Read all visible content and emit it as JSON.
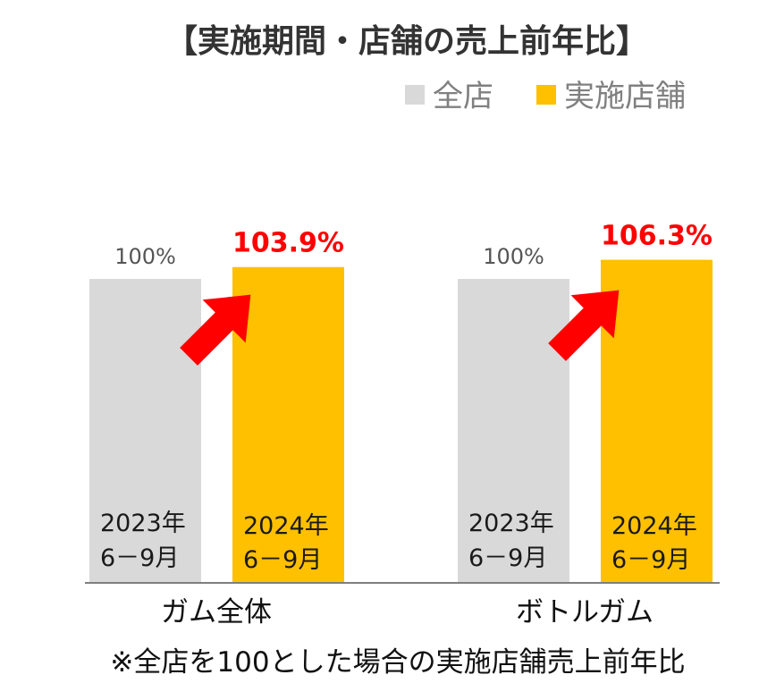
{
  "chart_data": {
    "type": "bar",
    "title": "【実施期間・店舗の売上前年比】",
    "categories": [
      "ガム全体",
      "ボトルガム"
    ],
    "series": [
      {
        "name": "全店",
        "color": "#d9d9d9",
        "values": [
          100,
          100
        ],
        "value_labels": [
          "100%",
          "100%"
        ],
        "period_labels": [
          [
            "2023年",
            "6－9月"
          ],
          [
            "2023年",
            "6－9月"
          ]
        ]
      },
      {
        "name": "実施店舗",
        "color": "#ffc000",
        "values": [
          103.9,
          106.3
        ],
        "value_labels": [
          "103.9%",
          "106.3%"
        ],
        "period_labels": [
          [
            "2024年",
            "6－9月"
          ],
          [
            "2024年",
            "6－9月"
          ]
        ]
      }
    ],
    "ylim": [
      0,
      115
    ],
    "legend": "top-right",
    "grid": false,
    "annotation": "red arrow from 全店 bar to 実施店舗 bar in each group",
    "footnote": "※全店を100とした場合の実施店舗売上前年比"
  },
  "colors": {
    "base_bar": "#d9d9d9",
    "store_bar": "#ffc000",
    "highlight": "#ff0000",
    "baseline": "#7f7f7f"
  }
}
